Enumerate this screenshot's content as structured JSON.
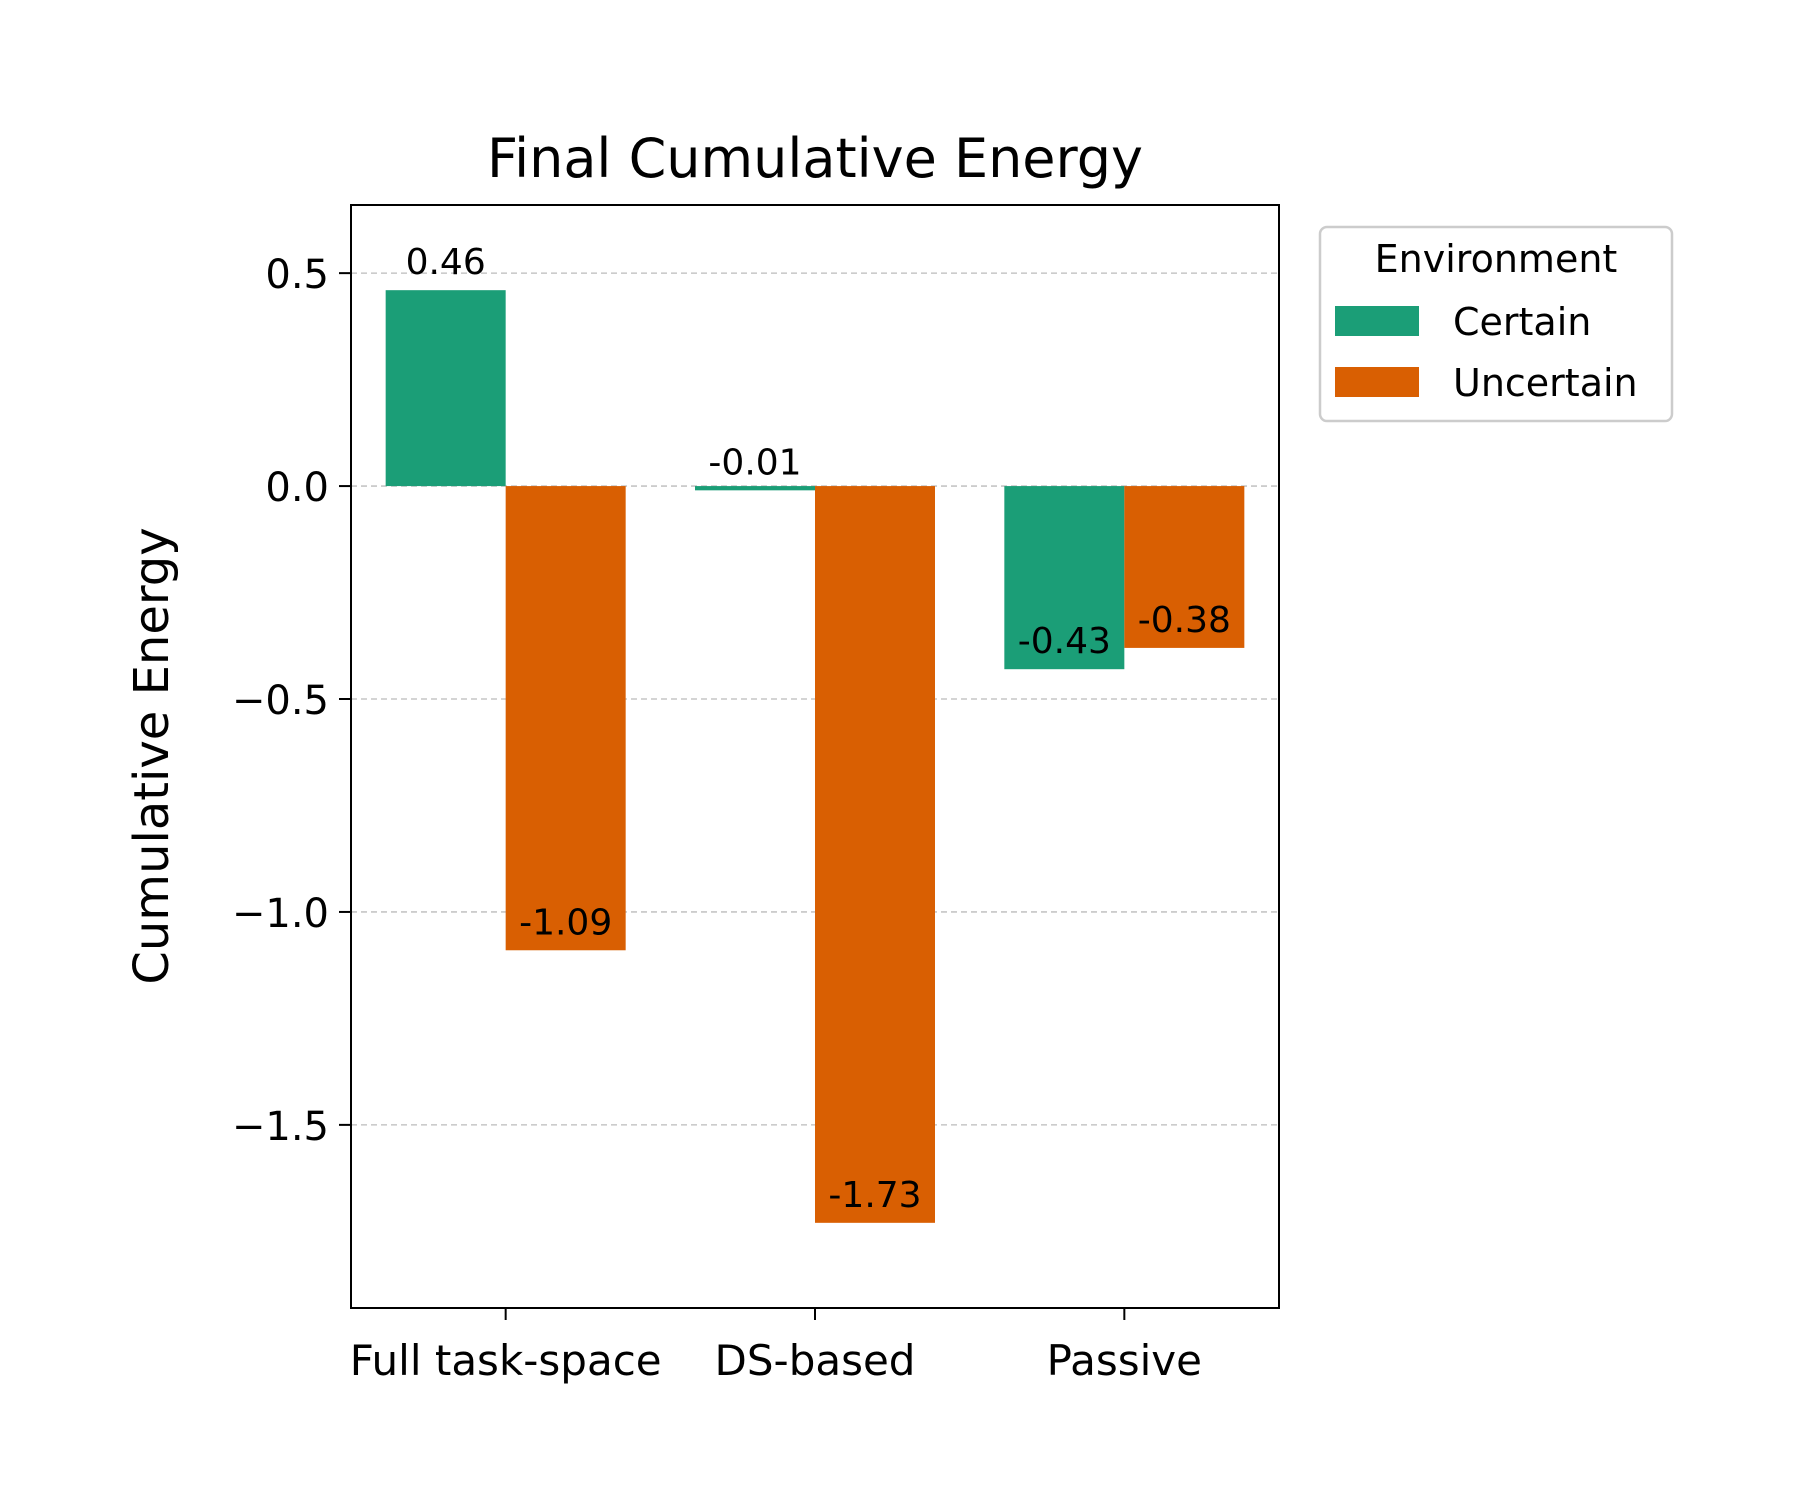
{
  "chart_data": {
    "type": "bar",
    "title": "Final Cumulative Energy",
    "xlabel": "",
    "ylabel": "Cumulative Energy",
    "categories": [
      "Full task-space",
      "DS-based",
      "Passive"
    ],
    "series": [
      {
        "name": "Certain",
        "color": "#1b9e77",
        "values": [
          0.46,
          -0.01,
          -0.43
        ],
        "labels": [
          "0.46",
          "-0.01",
          "-0.43"
        ]
      },
      {
        "name": "Uncertain",
        "color": "#d95f02",
        "values": [
          -1.09,
          -1.73,
          -0.38
        ],
        "labels": [
          "-1.09",
          "-1.73",
          "-0.38"
        ]
      }
    ],
    "ylim": [
      -1.93,
      0.66
    ],
    "yticks": [
      0.5,
      0.0,
      -0.5,
      -1.0,
      -1.5
    ],
    "ytick_labels": [
      "0.5",
      "0.0",
      "−0.5",
      "−1.0",
      "−1.5"
    ],
    "grid": {
      "axis": "y",
      "style": "dashed",
      "on": true
    },
    "legend": {
      "title": "Environment",
      "placement": "outside-upper-right"
    }
  }
}
